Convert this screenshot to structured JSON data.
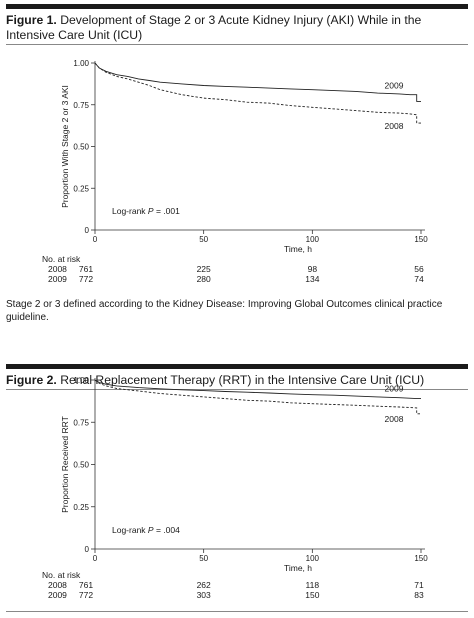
{
  "figures": [
    {
      "label": "Figure 1.",
      "title": "Development of Stage 2 or 3 Acute Kidney Injury (AKI) While in the Intensive Care Unit (ICU)",
      "footnote": "Stage 2 or 3 defined according to the Kidney Disease: Improving Global Outcomes clinical practice guideline.",
      "risk_title": "No. at risk"
    },
    {
      "label": "Figure 2.",
      "title": "Renal Replacement Therapy (RRT) in the Intensive Care Unit (ICU)",
      "footnote": "",
      "risk_title": "No. at risk"
    }
  ],
  "chart_data": [
    {
      "type": "line",
      "title": "",
      "xlabel": "Time, h",
      "ylabel": "Proportion With Stage 2 or 3 AKI",
      "xlim": [
        0,
        150
      ],
      "ylim": [
        0,
        1
      ],
      "x_ticks": [
        0,
        50,
        100,
        150
      ],
      "y_ticks": [
        0,
        0.25,
        0.5,
        0.75,
        1.0
      ],
      "y_tick_labels": [
        "0",
        "0.25",
        "0.50",
        "0.75",
        "1.00"
      ],
      "grid": false,
      "annotation": {
        "prefix": "Log-rank ",
        "italic": "P",
        "suffix": " = .001"
      },
      "series": [
        {
          "name": "2009",
          "style": "solid",
          "x": [
            0,
            2,
            5,
            10,
            15,
            20,
            25,
            30,
            40,
            50,
            60,
            70,
            80,
            90,
            100,
            110,
            120,
            130,
            140,
            145,
            148,
            148,
            150
          ],
          "y": [
            1.0,
            0.97,
            0.95,
            0.93,
            0.92,
            0.905,
            0.895,
            0.885,
            0.875,
            0.865,
            0.86,
            0.855,
            0.85,
            0.845,
            0.84,
            0.835,
            0.83,
            0.82,
            0.815,
            0.81,
            0.81,
            0.77,
            0.77
          ],
          "risk": [
            772,
            280,
            134,
            74
          ]
        },
        {
          "name": "2008",
          "style": "dashed",
          "x": [
            0,
            2,
            5,
            10,
            15,
            20,
            25,
            30,
            40,
            50,
            60,
            70,
            80,
            90,
            100,
            110,
            120,
            130,
            140,
            145,
            148,
            148,
            150
          ],
          "y": [
            1.0,
            0.97,
            0.945,
            0.92,
            0.905,
            0.885,
            0.865,
            0.84,
            0.81,
            0.79,
            0.78,
            0.765,
            0.76,
            0.745,
            0.735,
            0.725,
            0.715,
            0.705,
            0.7,
            0.695,
            0.69,
            0.64,
            0.64
          ],
          "risk": [
            761,
            225,
            98,
            56
          ]
        }
      ]
    },
    {
      "type": "line",
      "title": "",
      "xlabel": "Time, h",
      "ylabel": "Proportion Received RRT",
      "xlim": [
        0,
        150
      ],
      "ylim": [
        0,
        1
      ],
      "x_ticks": [
        0,
        50,
        100,
        150
      ],
      "y_ticks": [
        0,
        0.25,
        0.5,
        0.75,
        1.0
      ],
      "y_tick_labels": [
        "0",
        "0.25",
        "0.50",
        "0.75",
        "1.00"
      ],
      "grid": false,
      "annotation": {
        "prefix": "Log-rank ",
        "italic": "P",
        "suffix": " = .004"
      },
      "series": [
        {
          "name": "2009",
          "style": "solid",
          "x": [
            0,
            2,
            5,
            10,
            20,
            30,
            40,
            50,
            60,
            70,
            80,
            90,
            100,
            110,
            120,
            130,
            140,
            148,
            150
          ],
          "y": [
            1.0,
            0.985,
            0.975,
            0.965,
            0.955,
            0.948,
            0.942,
            0.937,
            0.932,
            0.928,
            0.923,
            0.918,
            0.913,
            0.91,
            0.905,
            0.9,
            0.895,
            0.89,
            0.89
          ],
          "risk": [
            772,
            303,
            150,
            83
          ]
        },
        {
          "name": "2008",
          "style": "dashed",
          "x": [
            0,
            2,
            5,
            10,
            20,
            30,
            40,
            50,
            60,
            70,
            80,
            90,
            100,
            110,
            120,
            130,
            140,
            148,
            148,
            150
          ],
          "y": [
            1.0,
            0.98,
            0.965,
            0.95,
            0.935,
            0.92,
            0.91,
            0.9,
            0.89,
            0.88,
            0.875,
            0.865,
            0.86,
            0.855,
            0.85,
            0.845,
            0.84,
            0.835,
            0.8,
            0.8
          ],
          "risk": [
            761,
            262,
            118,
            71
          ]
        }
      ]
    }
  ]
}
